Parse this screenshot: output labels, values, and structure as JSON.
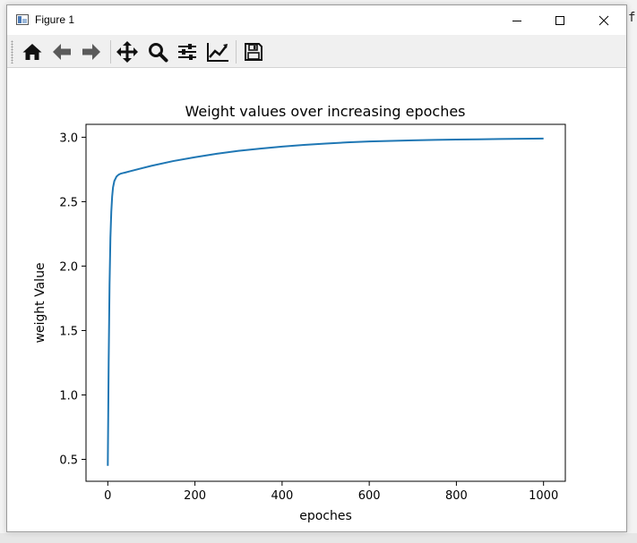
{
  "window": {
    "title": "Figure 1"
  },
  "background": {
    "edge_text": "f"
  },
  "toolbar": {
    "tools": [
      "home-icon",
      "back-arrow-icon",
      "forward-arrow-icon",
      "pan-move-icon",
      "zoom-magnifier-icon",
      "subplot-config-icon",
      "edit-axes-icon",
      "save-disk-icon"
    ]
  },
  "chart_data": {
    "type": "line",
    "title": "Weight values over increasing epoches",
    "xlabel": "epoches",
    "ylabel": "weight Value",
    "xlim": [
      -50,
      1050
    ],
    "ylim": [
      0.33,
      3.1
    ],
    "xticks": [
      0,
      200,
      400,
      600,
      800,
      1000
    ],
    "xtick_labels": [
      "0",
      "200",
      "400",
      "600",
      "800",
      "1000"
    ],
    "yticks": [
      0.5,
      1.0,
      1.5,
      2.0,
      2.5,
      3.0
    ],
    "ytick_labels": [
      "0.5",
      "1.0",
      "1.5",
      "2.0",
      "2.5",
      "3.0"
    ],
    "grid": false,
    "line_color": "#1f77b4",
    "series": [
      {
        "x": [
          0,
          2,
          4,
          6,
          8,
          10,
          12,
          15,
          20,
          25,
          30,
          35,
          40,
          50,
          75,
          100,
          150,
          200,
          250,
          300,
          350,
          400,
          450,
          500,
          550,
          600,
          650,
          700,
          750,
          800,
          850,
          900,
          950,
          1000
        ],
        "values": [
          0.45,
          1.25,
          1.85,
          2.22,
          2.42,
          2.54,
          2.61,
          2.66,
          2.695,
          2.71,
          2.718,
          2.722,
          2.726,
          2.735,
          2.757,
          2.778,
          2.815,
          2.845,
          2.872,
          2.894,
          2.912,
          2.927,
          2.94,
          2.951,
          2.96,
          2.967,
          2.972,
          2.976,
          2.979,
          2.982,
          2.984,
          2.986,
          2.988,
          2.99
        ]
      }
    ]
  }
}
